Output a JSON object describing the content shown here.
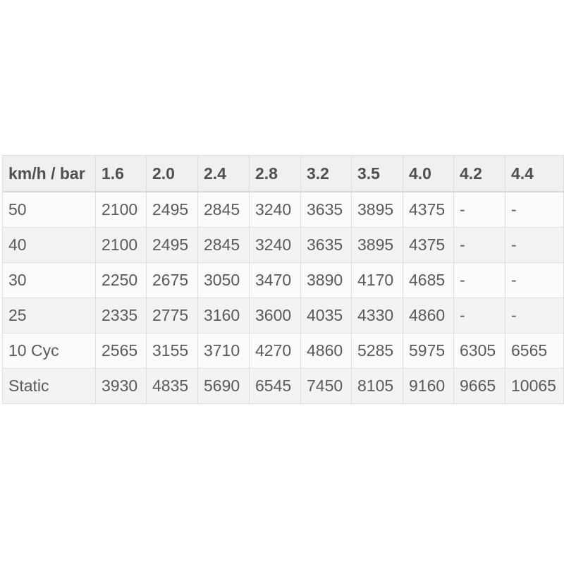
{
  "table": {
    "headers": [
      "km/h / bar",
      "1.6",
      "2.0",
      "2.4",
      "2.8",
      "3.2",
      "3.5",
      "4.0",
      "4.2",
      "4.4"
    ],
    "rows": [
      [
        "50",
        "2100",
        "2495",
        "2845",
        "3240",
        "3635",
        "3895",
        "4375",
        "-",
        "-"
      ],
      [
        "40",
        "2100",
        "2495",
        "2845",
        "3240",
        "3635",
        "3895",
        "4375",
        "-",
        "-"
      ],
      [
        "30",
        "2250",
        "2675",
        "3050",
        "3470",
        "3890",
        "4170",
        "4685",
        "-",
        "-"
      ],
      [
        "25",
        "2335",
        "2775",
        "3160",
        "3600",
        "4035",
        "4330",
        "4860",
        "-",
        "-"
      ],
      [
        "10 Cyc",
        "2565",
        "3155",
        "3710",
        "4270",
        "4860",
        "5285",
        "5975",
        "6305",
        "6565"
      ],
      [
        "Static",
        "3930",
        "4835",
        "5690",
        "6545",
        "7450",
        "8105",
        "9160",
        "9665",
        "10065"
      ]
    ]
  }
}
